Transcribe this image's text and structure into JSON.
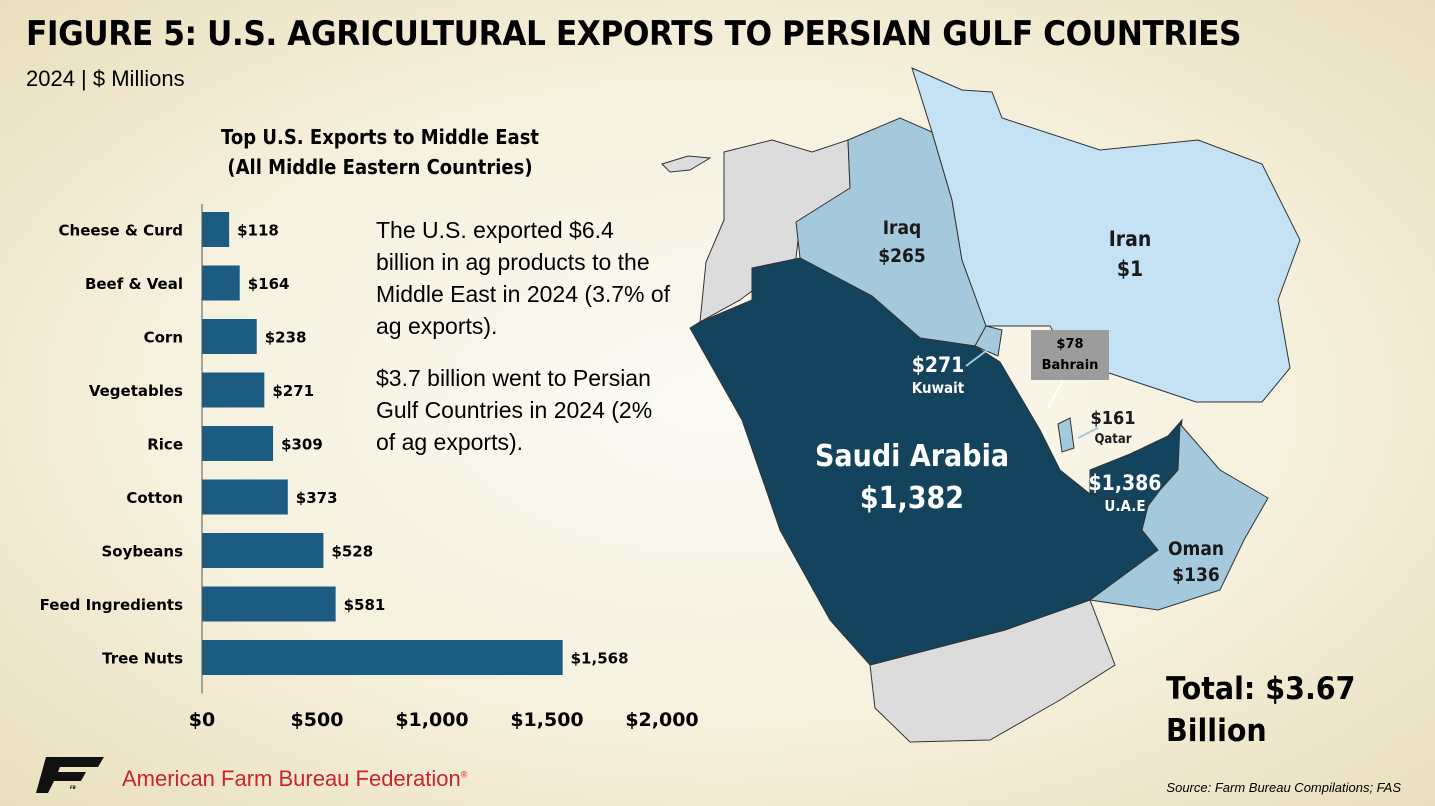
{
  "title": "FIGURE 5: U.S. AGRICULTURAL EXPORTS TO PERSIAN GULF COUNTRIES",
  "subtitle": "2024 | $ Millions",
  "chart_data": {
    "type": "bar",
    "orientation": "horizontal",
    "title_lines": [
      "Top U.S. Exports to Middle East",
      "(All Middle Eastern Countries)"
    ],
    "categories": [
      "Cheese & Curd",
      "Beef & Veal",
      "Corn",
      "Vegetables",
      "Rice",
      "Cotton",
      "Soybeans",
      "Feed Ingredients",
      "Tree Nuts"
    ],
    "values": [
      118,
      164,
      238,
      271,
      309,
      373,
      528,
      581,
      1568
    ],
    "value_labels": [
      "$118",
      "$164",
      "$238",
      "$271",
      "$309",
      "$373",
      "$528",
      "$581",
      "$1,568"
    ],
    "xlim": [
      0,
      2000
    ],
    "xticks": [
      0,
      500,
      1000,
      1500,
      2000
    ],
    "xtick_labels": [
      "$0",
      "$500",
      "$1,000",
      "$1,500",
      "$2,000"
    ],
    "bar_color": "#1d5c82",
    "grid": false
  },
  "note": {
    "para1": "The U.S. exported $6.4 billion in ag products to the Middle East in 2024 (3.7% of ag exports).",
    "para2": "$3.7 billion went to Persian Gulf Countries in 2024 (2% of ag exports)."
  },
  "map": {
    "countries": [
      {
        "name": "Saudi Arabia",
        "value": "$1,382",
        "color": "#13435d"
      },
      {
        "name": "U.A.E",
        "value": "$1,386",
        "color": "#13435d"
      },
      {
        "name": "Kuwait",
        "value": "$271",
        "color": "#a4c8dc"
      },
      {
        "name": "Iraq",
        "value": "$265",
        "color": "#a4c8dc"
      },
      {
        "name": "Qatar",
        "value": "$161",
        "color": "#a4c8dc"
      },
      {
        "name": "Oman",
        "value": "$136",
        "color": "#a4c8dc"
      },
      {
        "name": "Bahrain",
        "value": "$78",
        "color": "#9c9c9c"
      },
      {
        "name": "Iran",
        "value": "$1",
        "color": "#c5e2f4"
      }
    ],
    "other_color": "#dcdcdc"
  },
  "total": {
    "line1": "Total: $3.67",
    "line2": "Billion"
  },
  "organization": "American Farm Bureau Federation",
  "registered_mark": "®",
  "logo_text": "FB",
  "source": "Source: Farm Bureau Compilations; FAS"
}
